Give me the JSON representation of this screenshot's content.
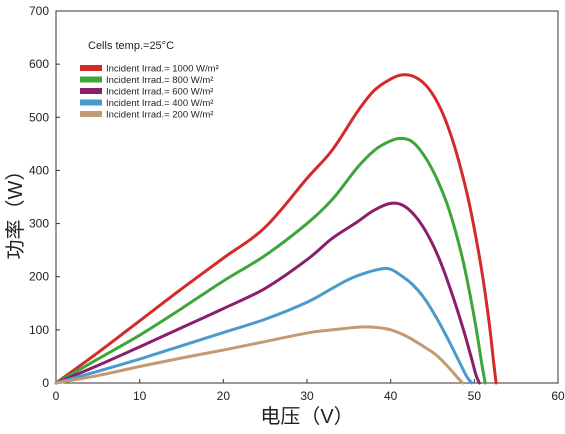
{
  "chart_data": {
    "type": "line",
    "title": "",
    "xlabel": "电压（V）",
    "ylabel": "功率（W）",
    "xlim": [
      0,
      60
    ],
    "ylim": [
      0,
      700
    ],
    "xticks": [
      "0",
      "10",
      "20",
      "30",
      "40",
      "50",
      "60"
    ],
    "yticks": [
      "0",
      "100",
      "200",
      "300",
      "400",
      "500",
      "600",
      "700"
    ],
    "grid": false,
    "legend_placement": "top-left",
    "annotation": "Cells temp.=25°C",
    "series": [
      {
        "name": "Incident Irrad.= 1000 W/m²",
        "color": "#d42a2a",
        "x": [
          0,
          5,
          10,
          15,
          20,
          25,
          30,
          33,
          36,
          38,
          40,
          41.5,
          43,
          44.5,
          46,
          47.5,
          49,
          50,
          51,
          51.8,
          52.3,
          52.6
        ],
        "y": [
          0,
          57,
          117,
          177,
          235,
          293,
          385,
          438,
          510,
          550,
          572,
          580,
          575,
          555,
          515,
          452,
          365,
          290,
          200,
          110,
          40,
          0
        ]
      },
      {
        "name": "Incident Irrad.= 800 W/m²",
        "color": "#3da63a",
        "x": [
          0,
          5,
          10,
          15,
          20,
          25,
          30,
          33,
          36,
          38,
          39.5,
          41,
          42.5,
          44,
          45.5,
          47,
          48.5,
          49.5,
          50.3,
          50.9,
          51.3
        ],
        "y": [
          0,
          45,
          90,
          140,
          192,
          240,
          300,
          345,
          405,
          437,
          452,
          460,
          455,
          428,
          385,
          325,
          240,
          165,
          95,
          35,
          0
        ]
      },
      {
        "name": "Incident Irrad.= 600 W/m²",
        "color": "#8a1f6b",
        "x": [
          0,
          5,
          10,
          15,
          20,
          25,
          30,
          33,
          36,
          38,
          40,
          41.5,
          43,
          44.5,
          46,
          47.5,
          48.7,
          49.6,
          50.2,
          50.6
        ],
        "y": [
          0,
          33,
          68,
          104,
          140,
          178,
          232,
          272,
          303,
          325,
          338,
          334,
          313,
          277,
          226,
          160,
          100,
          50,
          15,
          0
        ]
      },
      {
        "name": "Incident Irrad.= 400 W/m²",
        "color": "#4a9bc9",
        "x": [
          0,
          5,
          10,
          15,
          20,
          25,
          30,
          33,
          35,
          37,
          39,
          40,
          41,
          42.5,
          44,
          45.5,
          47,
          48.2,
          49.1,
          49.7
        ],
        "y": [
          0,
          22,
          45,
          70,
          95,
          120,
          152,
          178,
          195,
          207,
          215,
          214,
          205,
          187,
          160,
          122,
          78,
          40,
          12,
          0
        ]
      },
      {
        "name": "Incident Irrad.= 200 W/m²",
        "color": "#c29a74",
        "x": [
          0,
          5,
          10,
          15,
          20,
          25,
          30,
          33,
          36,
          38,
          40,
          42,
          44,
          45.5,
          47,
          48,
          48.6
        ],
        "y": [
          0,
          14,
          31,
          47,
          62,
          78,
          94,
          100,
          105,
          105,
          100,
          87,
          68,
          52,
          28,
          10,
          0
        ]
      }
    ]
  }
}
